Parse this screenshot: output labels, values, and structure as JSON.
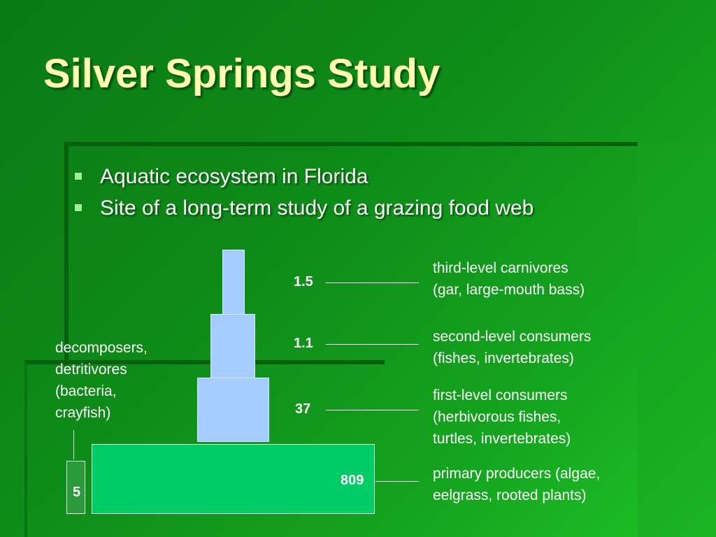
{
  "slide": {
    "title": "Silver Springs Study",
    "bullets": [
      "Aquatic ecosystem in Florida",
      "Site of a long-term study of a grazing food web"
    ]
  },
  "pyramid": {
    "levels": [
      {
        "id": "third",
        "value": "1.5",
        "label_lines": [
          "third-level carnivores",
          "(gar, large-mouth bass)"
        ]
      },
      {
        "id": "second",
        "value": "1.1",
        "label_lines": [
          "second-level consumers",
          "(fishes, invertebrates)"
        ]
      },
      {
        "id": "first",
        "value": "37",
        "label_lines": [
          "first-level consumers",
          "(herbivorous fishes,",
          "turtles, invertebrates)"
        ]
      },
      {
        "id": "producers",
        "value": "809",
        "label_lines": [
          "primary producers (algae,",
          "eelgrass, rooted plants)"
        ]
      }
    ],
    "decomposers": {
      "value": "5",
      "label_lines": [
        "decomposers,",
        "detritivores",
        "(bacteria,",
        "crayfish)"
      ]
    }
  },
  "colors": {
    "background": "#0e8a18",
    "title": "#ffffb0",
    "consumer_tiers": "#a4ccff",
    "producer_tier": "#00cc66",
    "decomposer_tier": "#2a9a3a",
    "bullet_marker": "#9cf39c"
  }
}
